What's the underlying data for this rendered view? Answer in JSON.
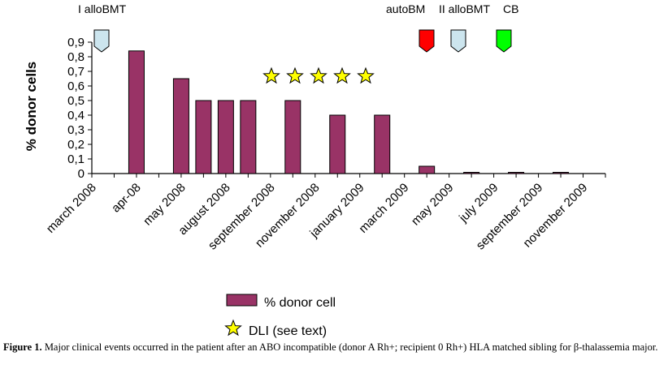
{
  "chart_data": {
    "type": "bar",
    "categories": [
      "march 2008",
      "apr-08",
      "may 2008",
      "august 2008",
      "",
      "september 2008",
      "",
      "november 2008",
      "",
      "january 2009",
      "",
      "march 2009",
      "",
      "may 2009",
      "",
      "july 2009",
      "",
      "september 2009",
      "",
      "november 2009",
      "",
      "",
      ""
    ],
    "x_tick_labels": [
      "march 2008",
      "apr-08",
      "may 2008",
      "august 2008",
      "september 2008",
      "november 2008",
      "january 2009",
      "march 2009",
      "may 2009",
      "july 2009",
      "september 2009",
      "november 2009"
    ],
    "series": [
      {
        "name": "% donor cell",
        "color": "#993366",
        "points": [
          {
            "x": "apr-08",
            "y": 0.84
          },
          {
            "x": "may 2008",
            "y": 0.65
          },
          {
            "x": "august 2008 (a)",
            "y": 0.5
          },
          {
            "x": "august 2008 (b)",
            "y": 0.5
          },
          {
            "x": "september 2008",
            "y": 0.5
          },
          {
            "x": "november 2008",
            "y": 0.5
          },
          {
            "x": "january 2009",
            "y": 0.4
          },
          {
            "x": "march 2009",
            "y": 0.4
          },
          {
            "x": "may 2009",
            "y": 0.05
          },
          {
            "x": "july 2009",
            "y": 0.0
          },
          {
            "x": "september 2009",
            "y": 0.0
          },
          {
            "x": "november 2009",
            "y": 0.0
          }
        ]
      }
    ],
    "ylabel": "% donor cells",
    "ylim": [
      0,
      0.9
    ],
    "y_ticks": [
      "0",
      "0,1",
      "0,2",
      "0,3",
      "0,4",
      "0,5",
      "0,6",
      "0,7",
      "0,8",
      "0,9"
    ],
    "legend": [
      {
        "label": "% donor cell",
        "marker": "bar",
        "color": "#993366"
      },
      {
        "label": "DLI (see text)",
        "marker": "star",
        "color": "#ffff00"
      }
    ],
    "legend_position": "bottom",
    "dli_star_count": 5,
    "events": [
      {
        "label": "I alloBMT",
        "color": "#cce5ee"
      },
      {
        "label": "autoBM",
        "color": "#ff0000"
      },
      {
        "label": "II alloBMT",
        "color": "#cce5ee"
      },
      {
        "label": "CB",
        "color": "#00ff00"
      }
    ]
  },
  "caption": {
    "prefix": "Figure 1.",
    "text": "Major clinical events occurred in the patient after an ABO incompatible (donor A Rh+; recipient 0 Rh+) HLA matched sibling for β-thalassemia major."
  }
}
